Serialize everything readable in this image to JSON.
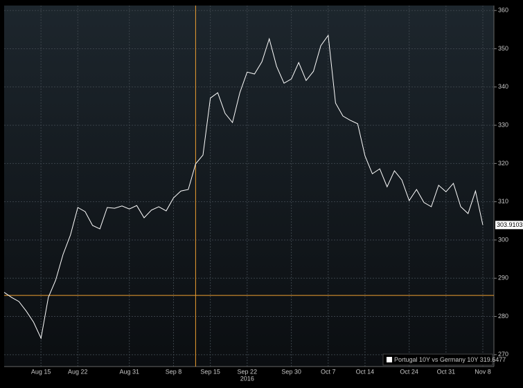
{
  "chart_data": {
    "type": "line",
    "series": [
      {
        "name": "Portugal 10Y vs Germany 10Y 319.6477",
        "color": "#ffffff",
        "values": [
          286.3,
          285.0,
          283.9,
          281.4,
          278.5,
          274.3,
          285.0,
          289.5,
          296.2,
          301.3,
          308.5,
          307.4,
          303.8,
          302.9,
          308.5,
          308.3,
          308.9,
          308.1,
          309.0,
          305.8,
          307.8,
          308.7,
          307.6,
          311.0,
          312.8,
          313.2,
          319.9,
          322.2,
          337.1,
          338.5,
          333.1,
          330.7,
          338.5,
          343.9,
          343.4,
          346.6,
          352.6,
          345.4,
          341.0,
          342.1,
          346.4,
          341.7,
          344.1,
          350.8,
          353.5,
          335.8,
          332.4,
          331.3,
          330.4,
          322.0,
          317.3,
          318.6,
          313.9,
          318.1,
          315.7,
          310.3,
          313.2,
          309.8,
          308.7,
          314.3,
          312.6,
          314.8,
          308.7,
          306.9,
          312.8,
          303.91
        ]
      }
    ],
    "categories": [
      null,
      null,
      null,
      null,
      null,
      "Aug 15",
      null,
      null,
      null,
      null,
      "Aug 22",
      null,
      null,
      null,
      null,
      null,
      null,
      "Aug 31",
      null,
      null,
      null,
      null,
      null,
      "Sep 8",
      null,
      null,
      null,
      null,
      "Sep 15",
      null,
      null,
      null,
      null,
      "Sep 22",
      null,
      null,
      null,
      null,
      null,
      "Sep 30",
      null,
      null,
      null,
      null,
      "Oct 7",
      null,
      null,
      null,
      null,
      "Oct 14",
      null,
      null,
      null,
      null,
      null,
      "Oct 24",
      null,
      null,
      null,
      null,
      "Oct 31",
      null,
      null,
      null,
      null,
      "Nov 8"
    ],
    "x_year_label": "2016",
    "last_value_label": "303.9103",
    "crosshair": {
      "category_index": 26,
      "y": 285.5,
      "color": "#f0a030"
    },
    "ylim": [
      266.9,
      361.3
    ],
    "yticks": [
      270,
      280,
      290,
      300,
      310,
      320,
      330,
      340,
      350,
      360
    ],
    "grid": true
  }
}
